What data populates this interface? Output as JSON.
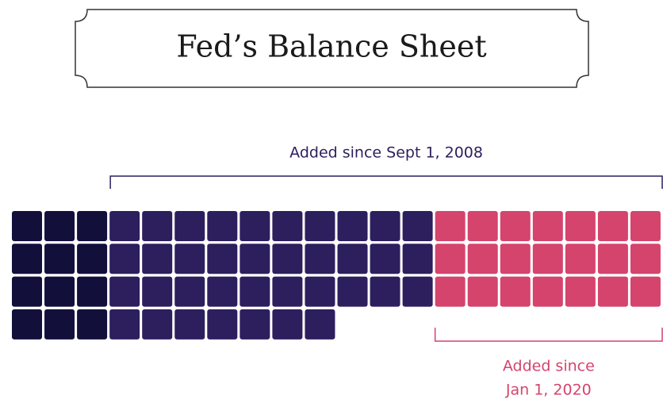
{
  "chart_data": {
    "type": "waffle",
    "title": "Fed’s Balance Sheet",
    "groups": [
      {
        "color": "#130f3b",
        "value": 12
      },
      {
        "color": "#2d1f5e",
        "value": 37
      },
      {
        "color": "#d4446d",
        "value": 21
      }
    ],
    "annotations": [
      {
        "lines": [
          "Added since Sept 1, 2008"
        ],
        "color": "#2d1f5e"
      },
      {
        "lines": [
          "Added since",
          "Jan 1, 2020"
        ],
        "color": "#d4446d"
      }
    ]
  }
}
